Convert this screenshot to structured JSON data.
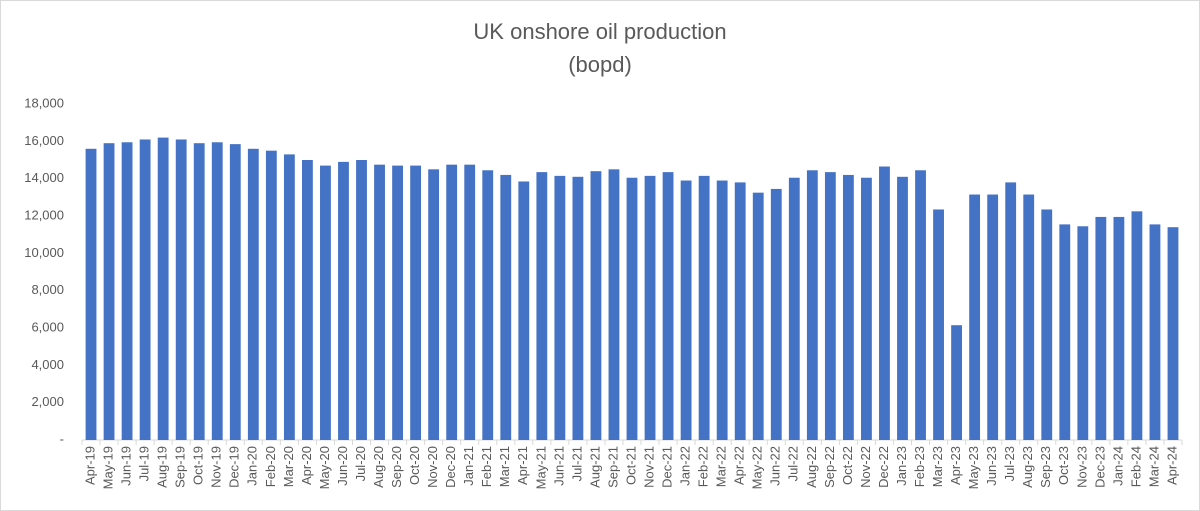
{
  "chart_data": {
    "type": "bar",
    "title": "UK onshore oil production",
    "subtitle": "(bopd)",
    "categories": [
      "Apr-19",
      "May-19",
      "Jun-19",
      "Jul-19",
      "Aug-19",
      "Sep-19",
      "Oct-19",
      "Nov-19",
      "Dec-19",
      "Jan-20",
      "Feb-20",
      "Mar-20",
      "Apr-20",
      "May-20",
      "Jun-20",
      "Jul-20",
      "Aug-20",
      "Sep-20",
      "Oct-20",
      "Nov-20",
      "Dec-20",
      "Jan-21",
      "Feb-21",
      "Mar-21",
      "Apr-21",
      "May-21",
      "Jun-21",
      "Jul-21",
      "Aug-21",
      "Sep-21",
      "Oct-21",
      "Nov-21",
      "Dec-21",
      "Jan-22",
      "Feb-22",
      "Mar-22",
      "Apr-22",
      "May-22",
      "Jun-22",
      "Jul-22",
      "Aug-22",
      "Sep-22",
      "Oct-22",
      "Nov-22",
      "Dec-22",
      "Jan-23",
      "Feb-23",
      "Mar-23",
      "Apr-23",
      "May-23",
      "Jun-23",
      "Jul-23",
      "Aug-23",
      "Sep-23",
      "Oct-23",
      "Nov-23",
      "Dec-23",
      "Jan-24",
      "Feb-24",
      "Mar-24",
      "Apr-24"
    ],
    "values": [
      15600,
      15900,
      15950,
      16100,
      16200,
      16100,
      15900,
      15950,
      15850,
      15600,
      15500,
      15300,
      15000,
      14700,
      14900,
      15000,
      14750,
      14700,
      14700,
      14500,
      14750,
      14750,
      14450,
      14200,
      13850,
      14350,
      14150,
      14100,
      14400,
      14500,
      14050,
      14150,
      14350,
      13900,
      14150,
      13900,
      13800,
      13250,
      13450,
      14050,
      14450,
      14350,
      14200,
      14050,
      14650,
      14100,
      14450,
      12350,
      6150,
      13150,
      13150,
      13800,
      13150,
      12350,
      11550,
      11450,
      11950,
      11950,
      12250,
      11550,
      11400
    ],
    "color": "#4472c4",
    "ylim": [
      0,
      18000
    ],
    "yticks": [
      {
        "value": 0,
        "label": "-"
      },
      {
        "value": 2000,
        "label": "2,000"
      },
      {
        "value": 4000,
        "label": "4,000"
      },
      {
        "value": 6000,
        "label": "6,000"
      },
      {
        "value": 8000,
        "label": "8,000"
      },
      {
        "value": 10000,
        "label": "10,000"
      },
      {
        "value": 12000,
        "label": "12,000"
      },
      {
        "value": 14000,
        "label": "14,000"
      },
      {
        "value": 16000,
        "label": "16,000"
      },
      {
        "value": 18000,
        "label": "18,000"
      }
    ],
    "grid": false
  }
}
